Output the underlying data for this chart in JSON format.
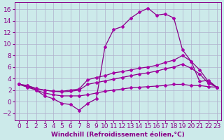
{
  "background_color": "#cceaea",
  "grid_color": "#b0b0cc",
  "line_color": "#880088",
  "marker_color": "#aa00aa",
  "xlabel": "Windchill (Refroidissement éolien,°C)",
  "xlim": [
    -0.5,
    23.5
  ],
  "ylim": [
    -3.2,
    17.2
  ],
  "xticks": [
    0,
    1,
    2,
    3,
    4,
    5,
    6,
    7,
    8,
    9,
    10,
    11,
    12,
    13,
    14,
    15,
    16,
    17,
    18,
    19,
    20,
    21,
    22,
    23
  ],
  "yticks": [
    -2,
    0,
    2,
    4,
    6,
    8,
    10,
    12,
    14,
    16
  ],
  "line1_x": [
    0,
    1,
    2,
    3,
    4,
    5,
    6,
    7,
    8,
    9,
    10,
    11,
    12,
    13,
    14,
    15,
    16,
    17,
    18,
    19,
    20,
    21,
    22,
    23
  ],
  "line1_y": [
    3.0,
    2.7,
    2.0,
    1.0,
    0.5,
    -0.3,
    -0.5,
    -1.5,
    -0.3,
    0.5,
    9.5,
    12.5,
    13.0,
    14.5,
    15.5,
    16.2,
    15.0,
    15.2,
    14.5,
    9.0,
    7.0,
    3.5,
    3.7,
    2.5
  ],
  "line2_x": [
    0,
    1,
    2,
    3,
    4,
    5,
    6,
    7,
    8,
    9,
    10,
    11,
    12,
    13,
    14,
    15,
    16,
    17,
    18,
    19,
    20,
    21,
    22,
    23
  ],
  "line2_y": [
    3.0,
    2.8,
    2.2,
    2.0,
    1.8,
    1.8,
    2.0,
    2.2,
    3.8,
    4.2,
    4.5,
    5.0,
    5.2,
    5.5,
    5.8,
    6.0,
    6.3,
    6.8,
    7.2,
    8.0,
    7.0,
    5.5,
    3.5,
    2.5
  ],
  "line3_x": [
    0,
    1,
    2,
    3,
    4,
    5,
    6,
    7,
    8,
    9,
    10,
    11,
    12,
    13,
    14,
    15,
    16,
    17,
    18,
    19,
    20,
    21,
    22,
    23
  ],
  "line3_y": [
    3.0,
    2.8,
    2.3,
    2.0,
    1.8,
    1.7,
    1.8,
    2.0,
    3.0,
    3.3,
    3.6,
    3.9,
    4.2,
    4.5,
    4.8,
    5.0,
    5.3,
    5.7,
    6.0,
    6.5,
    5.8,
    4.8,
    3.2,
    2.5
  ],
  "line4_x": [
    0,
    1,
    2,
    3,
    4,
    5,
    6,
    7,
    8,
    9,
    10,
    11,
    12,
    13,
    14,
    15,
    16,
    17,
    18,
    19,
    20,
    21,
    22,
    23
  ],
  "line4_y": [
    3.0,
    2.5,
    2.0,
    1.5,
    1.2,
    1.0,
    1.0,
    1.0,
    1.2,
    1.5,
    1.8,
    2.0,
    2.2,
    2.4,
    2.5,
    2.6,
    2.7,
    2.8,
    3.0,
    3.0,
    2.8,
    2.8,
    2.6,
    2.5
  ],
  "font_size_xlabel": 6.5,
  "font_size_ticks": 6.5
}
